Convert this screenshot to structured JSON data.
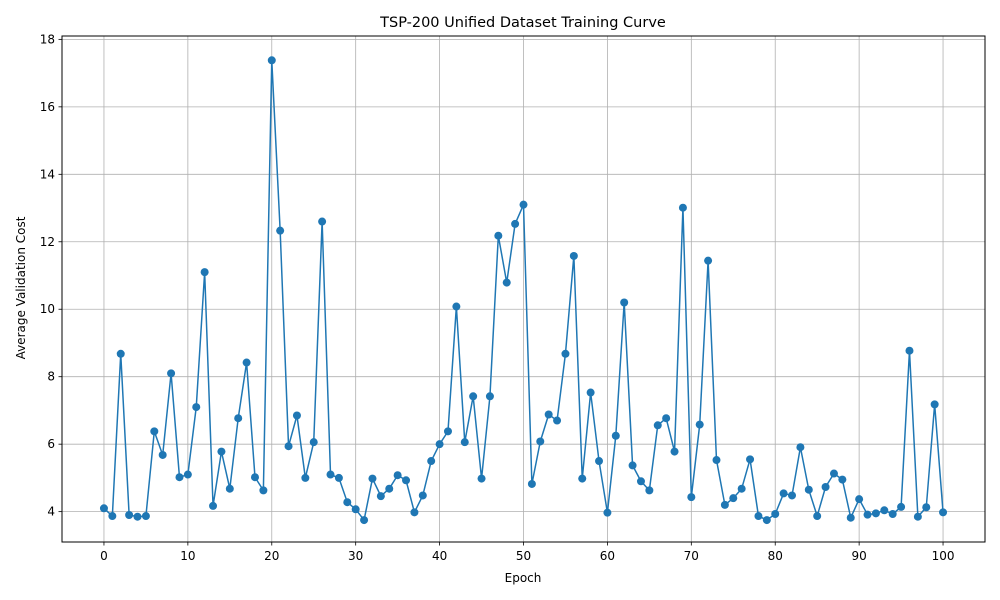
{
  "chart_data": {
    "type": "line",
    "title": "TSP-200 Unified Dataset Training Curve",
    "xlabel": "Epoch",
    "ylabel": "Average Validation Cost",
    "xlim": [
      -5,
      105
    ],
    "ylim": [
      3.1,
      18.1
    ],
    "xticks": [
      0,
      10,
      20,
      30,
      40,
      50,
      60,
      70,
      80,
      90,
      100
    ],
    "yticks": [
      4,
      6,
      8,
      10,
      12,
      14,
      16,
      18
    ],
    "grid": true,
    "marker": "circle",
    "color": "#1f77b4",
    "x": [
      0,
      1,
      2,
      3,
      4,
      5,
      6,
      7,
      8,
      9,
      10,
      11,
      12,
      13,
      14,
      15,
      16,
      17,
      18,
      19,
      20,
      21,
      22,
      23,
      24,
      25,
      26,
      27,
      28,
      29,
      30,
      31,
      32,
      33,
      34,
      35,
      36,
      37,
      38,
      39,
      40,
      41,
      42,
      43,
      44,
      45,
      46,
      47,
      48,
      49,
      50,
      51,
      52,
      53,
      54,
      55,
      56,
      57,
      58,
      59,
      60,
      61,
      62,
      63,
      64,
      65,
      66,
      67,
      68,
      69,
      70,
      71,
      72,
      73,
      74,
      75,
      76,
      77,
      78,
      79,
      80,
      81,
      82,
      83,
      84,
      85,
      86,
      87,
      88,
      89,
      90,
      91,
      92,
      93,
      94,
      95,
      96,
      97,
      98,
      99,
      100
    ],
    "y": [
      4.1,
      3.87,
      8.68,
      3.9,
      3.85,
      3.87,
      6.38,
      5.68,
      8.1,
      5.02,
      5.1,
      7.1,
      11.1,
      4.17,
      5.78,
      4.68,
      6.77,
      8.42,
      5.02,
      4.63,
      17.38,
      12.33,
      5.94,
      6.85,
      5.0,
      6.06,
      12.6,
      5.1,
      5.0,
      4.28,
      4.07,
      3.75,
      4.98,
      4.46,
      4.68,
      5.08,
      4.93,
      3.98,
      4.48,
      5.5,
      6.0,
      6.38,
      10.08,
      6.06,
      7.42,
      4.98,
      7.42,
      12.18,
      10.79,
      12.53,
      13.1,
      4.82,
      6.08,
      6.88,
      6.7,
      8.68,
      11.58,
      4.98,
      7.53,
      5.5,
      3.97,
      6.25,
      10.2,
      5.37,
      4.9,
      4.63,
      6.56,
      6.77,
      5.78,
      13.01,
      4.43,
      6.58,
      11.44,
      5.53,
      4.2,
      4.4,
      4.68,
      5.55,
      3.87,
      3.75,
      3.93,
      4.54,
      4.48,
      5.91,
      4.65,
      3.87,
      4.73,
      5.13,
      4.95,
      3.82,
      4.37,
      3.91,
      3.95,
      4.04,
      3.93,
      4.14,
      8.77,
      3.85,
      4.13,
      7.18,
      3.98
    ]
  }
}
